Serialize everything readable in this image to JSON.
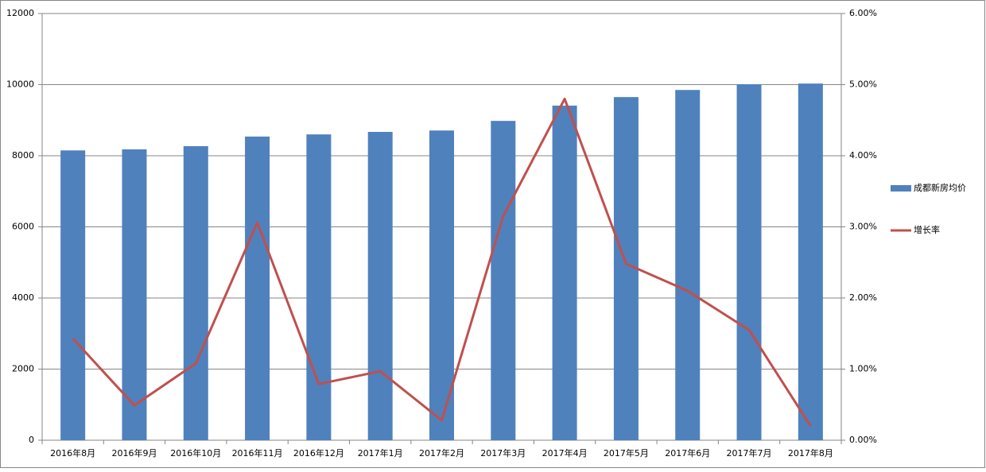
{
  "chart_data": {
    "type": "bar-line",
    "categories": [
      "2016年8月",
      "2016年9月",
      "2016年10月",
      "2016年11月",
      "2016年12月",
      "2017年1月",
      "2017年2月",
      "2017年3月",
      "2017年4月",
      "2017年5月",
      "2017年6月",
      "2017年7月",
      "2017年8月"
    ],
    "series": [
      {
        "name": "成都新房均价",
        "type": "bar",
        "color": "#4f81bd",
        "values": [
          8150,
          8180,
          8270,
          8540,
          8600,
          8670,
          8710,
          8980,
          9410,
          9650,
          9850,
          10010,
          10030
        ]
      },
      {
        "name": "增长率",
        "type": "line",
        "axis": "y2",
        "color": "#c0504d",
        "values": [
          1.43,
          0.49,
          1.08,
          3.06,
          0.79,
          0.97,
          0.28,
          3.15,
          4.8,
          2.48,
          2.1,
          1.55,
          0.2
        ]
      }
    ],
    "ylim": [
      0,
      12000
    ],
    "yticks": [
      0,
      2000,
      4000,
      6000,
      8000,
      10000,
      12000
    ],
    "y2lim": [
      0,
      6
    ],
    "y2ticks": [
      {
        "value": 0,
        "label": "0.00%"
      },
      {
        "value": 1,
        "label": "1.00%"
      },
      {
        "value": 2,
        "label": "2.00%"
      },
      {
        "value": 3,
        "label": "3.00%"
      },
      {
        "value": 4,
        "label": "4.00%"
      },
      {
        "value": 5,
        "label": "5.00%"
      },
      {
        "value": 6,
        "label": "6.00%"
      }
    ],
    "grid": true,
    "legend": "right"
  }
}
